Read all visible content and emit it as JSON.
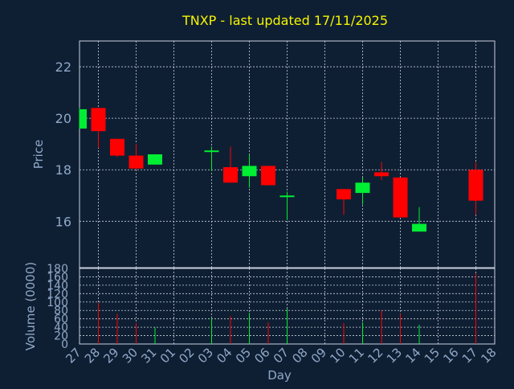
{
  "chart_data": {
    "type": "candlestick",
    "title": "TNXP - last updated 17/11/2025",
    "xlabel": "Day",
    "colors": {
      "background": "#0f1f33",
      "title": "#f5f500",
      "axis_text": "#8fa8c8",
      "grid": "#c8d0dc",
      "up": "#00ee33",
      "down": "#ff0000"
    },
    "x_ticks": [
      "27",
      "28",
      "29",
      "30",
      "31",
      "01",
      "02",
      "03",
      "04",
      "05",
      "06",
      "07",
      "08",
      "09",
      "10",
      "11",
      "12",
      "13",
      "14",
      "15",
      "16",
      "17",
      "18"
    ],
    "price_panel": {
      "ylabel": "Price",
      "ylim": [
        14.2,
        23.0
      ],
      "y_ticks": [
        16,
        18,
        20,
        22
      ],
      "grid": true
    },
    "volume_panel": {
      "ylabel": "Volume (0000)",
      "ylim": [
        0,
        180
      ],
      "y_ticks": [
        0,
        20,
        40,
        60,
        80,
        100,
        120,
        140,
        160,
        180
      ],
      "grid": true
    },
    "candles": [
      {
        "day": "27",
        "open": 19.6,
        "high": 20.4,
        "low": 19.6,
        "close": 20.35,
        "volume": 0
      },
      {
        "day": "28",
        "open": 20.4,
        "high": 20.4,
        "low": 18.85,
        "close": 19.5,
        "volume": 98
      },
      {
        "day": "29",
        "open": 19.2,
        "high": 19.2,
        "low": 18.5,
        "close": 18.55,
        "volume": 72
      },
      {
        "day": "30",
        "open": 18.55,
        "high": 19.0,
        "low": 18.0,
        "close": 18.05,
        "volume": 50
      },
      {
        "day": "31",
        "open": 18.2,
        "high": 18.6,
        "low": 18.2,
        "close": 18.6,
        "volume": 40
      },
      {
        "day": "03",
        "open": 18.7,
        "high": 18.9,
        "low": 17.95,
        "close": 18.75,
        "volume": 62
      },
      {
        "day": "04",
        "open": 18.1,
        "high": 18.9,
        "low": 17.5,
        "close": 17.5,
        "volume": 66
      },
      {
        "day": "05",
        "open": 17.75,
        "high": 18.6,
        "low": 17.3,
        "close": 18.15,
        "volume": 74
      },
      {
        "day": "06",
        "open": 18.15,
        "high": 18.15,
        "low": 17.4,
        "close": 17.4,
        "volume": 52
      },
      {
        "day": "07",
        "open": 16.95,
        "high": 17.15,
        "low": 16.05,
        "close": 17.0,
        "volume": 84
      },
      {
        "day": "10",
        "open": 17.25,
        "high": 17.25,
        "low": 16.25,
        "close": 16.85,
        "volume": 50
      },
      {
        "day": "11",
        "open": 17.1,
        "high": 17.7,
        "low": 16.65,
        "close": 17.5,
        "volume": 52
      },
      {
        "day": "12",
        "open": 17.9,
        "high": 18.3,
        "low": 17.6,
        "close": 17.75,
        "volume": 80
      },
      {
        "day": "13",
        "open": 17.7,
        "high": 17.7,
        "low": 16.15,
        "close": 16.15,
        "volume": 72
      },
      {
        "day": "14",
        "open": 15.6,
        "high": 16.55,
        "low": 15.6,
        "close": 15.9,
        "volume": 46
      },
      {
        "day": "17",
        "open": 18.0,
        "high": 18.3,
        "low": 16.25,
        "close": 16.8,
        "volume": 168
      }
    ]
  }
}
